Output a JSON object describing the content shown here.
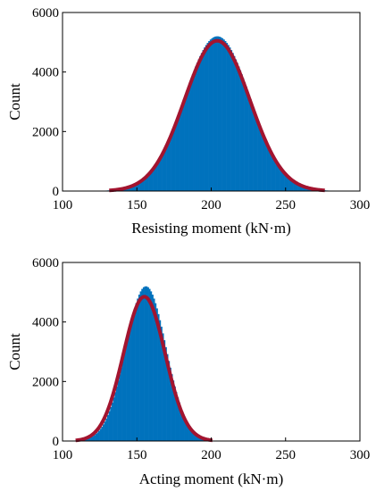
{
  "chart_data": [
    {
      "type": "histogram",
      "xlabel": "Resisting moment (kN·m)",
      "ylabel": "Count",
      "xlim": [
        100,
        300
      ],
      "ylim": [
        0,
        6000
      ],
      "xticks": [
        "100",
        "150",
        "200",
        "250",
        "300"
      ],
      "yticks": [
        "0",
        "2000",
        "4000",
        "6000"
      ],
      "histogram": {
        "mean": 204,
        "std": 22,
        "peak": 5200,
        "range": [
          125,
          290
        ]
      },
      "fit_curve": {
        "mean": 204,
        "std": 22,
        "peak": 5050
      },
      "colors": {
        "bars": "#0072bd",
        "fit": "#a2142f"
      }
    },
    {
      "type": "histogram",
      "xlabel": "Acting moment (kN·m)",
      "ylabel": "Count",
      "xlim": [
        100,
        300
      ],
      "ylim": [
        0,
        6000
      ],
      "xticks": [
        "100",
        "150",
        "200",
        "250",
        "300"
      ],
      "yticks": [
        "0",
        "2000",
        "4000",
        "6000"
      ],
      "histogram": {
        "mean": 156,
        "std": 13.5,
        "peak": 5200,
        "range": [
          100,
          200
        ]
      },
      "fit_curve": {
        "mean": 155,
        "std": 14,
        "peak": 4850
      },
      "colors": {
        "bars": "#0072bd",
        "fit": "#a2142f"
      }
    }
  ]
}
